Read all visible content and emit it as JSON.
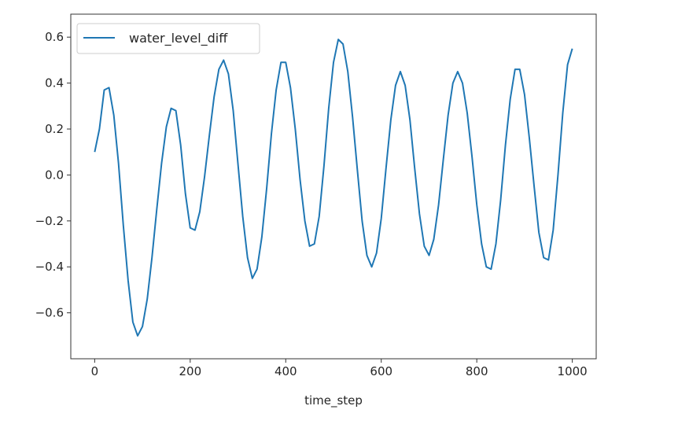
{
  "chart_data": {
    "type": "line",
    "title": "",
    "xlabel": "time_step",
    "ylabel": "",
    "xlim": [
      -50,
      1050
    ],
    "ylim": [
      -0.8,
      0.7
    ],
    "grid": false,
    "legend": {
      "placement": "top-left",
      "entries": [
        "water_level_diff"
      ]
    },
    "xticks": [
      0,
      200,
      400,
      600,
      800,
      1000
    ],
    "xtick_labels": [
      "0",
      "200",
      "400",
      "600",
      "800",
      "1000"
    ],
    "yticks": [
      -0.6,
      -0.4,
      -0.2,
      0.0,
      0.2,
      0.4,
      0.6
    ],
    "ytick_labels": [
      "−0.6",
      "−0.4",
      "−0.2",
      "0.0",
      "0.2",
      "0.4",
      "0.6"
    ],
    "colors": {
      "series": "#1f77b4"
    },
    "x_step": 10,
    "series": [
      {
        "name": "water_level_diff",
        "values": [
          0.1,
          0.2,
          0.37,
          0.38,
          0.26,
          0.05,
          -0.22,
          -0.46,
          -0.64,
          -0.7,
          -0.66,
          -0.54,
          -0.36,
          -0.15,
          0.05,
          0.21,
          0.29,
          0.28,
          0.13,
          -0.08,
          -0.23,
          -0.24,
          -0.16,
          -0.01,
          0.17,
          0.34,
          0.46,
          0.5,
          0.44,
          0.28,
          0.05,
          -0.18,
          -0.36,
          -0.45,
          -0.41,
          -0.27,
          -0.06,
          0.18,
          0.37,
          0.49,
          0.49,
          0.38,
          0.2,
          -0.02,
          -0.2,
          -0.31,
          -0.3,
          -0.18,
          0.04,
          0.29,
          0.49,
          0.59,
          0.57,
          0.45,
          0.25,
          0.02,
          -0.2,
          -0.35,
          -0.4,
          -0.34,
          -0.19,
          0.03,
          0.24,
          0.39,
          0.45,
          0.39,
          0.24,
          0.03,
          -0.17,
          -0.31,
          -0.35,
          -0.28,
          -0.13,
          0.07,
          0.26,
          0.4,
          0.45,
          0.4,
          0.27,
          0.08,
          -0.13,
          -0.3,
          -0.4,
          -0.41,
          -0.3,
          -0.11,
          0.13,
          0.33,
          0.46,
          0.46,
          0.35,
          0.16,
          -0.05,
          -0.25,
          -0.36,
          -0.37,
          -0.24,
          0.0,
          0.27,
          0.48,
          0.55
        ]
      }
    ]
  }
}
